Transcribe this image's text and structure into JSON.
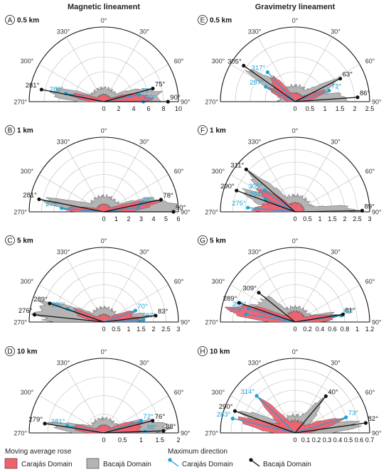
{
  "columns": {
    "left_title": "Magnetic lineament",
    "right_title": "Gravimetry lineament"
  },
  "colors": {
    "carajas_fill": "#f0606e",
    "bacaja_fill": "#b4b4b4",
    "carajas_line": "#1aa3d9",
    "bacaja_line": "#111111"
  },
  "angle_labels": [
    "0°",
    "30°",
    "60°",
    "90°",
    "270°",
    "300°",
    "330°"
  ],
  "legend": {
    "rose_title": "Moving average rose",
    "direction_title": "Maximum direction",
    "carajas": "Carajás Domain",
    "bacaja": "Bacajá Domain"
  },
  "chart_data": [
    {
      "panel": "A",
      "scale": "0.5 km",
      "column": "Magnetic lineament",
      "type": "area",
      "radial_ticks": [
        "0",
        "2",
        "4",
        "6",
        "8",
        "10"
      ],
      "rmax": 10,
      "carajas": {
        "max_directions": [
          282,
          79,
          90
        ],
        "peak": 5.0
      },
      "bacaja": {
        "max_directions": [
          281,
          75,
          90
        ],
        "peak": 7.5
      },
      "direction_markers": [
        {
          "domain": "carajas",
          "angle": 282,
          "value": 5.2,
          "label": "282°"
        },
        {
          "domain": "carajas",
          "angle": 79,
          "value": 4.8,
          "label": "79°"
        },
        {
          "domain": "carajas",
          "angle": 90,
          "value": 5.3,
          "label": "90°"
        },
        {
          "domain": "bacaja",
          "angle": 281,
          "value": 8.5,
          "label": "281°"
        },
        {
          "domain": "bacaja",
          "angle": 75,
          "value": 6.8,
          "label": "75°"
        },
        {
          "domain": "bacaja",
          "angle": 90,
          "value": 8.6,
          "label": "90°"
        }
      ]
    },
    {
      "panel": "B",
      "scale": "1 km",
      "column": "Magnetic lineament",
      "type": "area",
      "radial_ticks": [
        "0",
        "1",
        "2",
        "3",
        "4",
        "5",
        "6"
      ],
      "rmax": 6,
      "carajas": {
        "max_directions": [
          275,
          83,
          78
        ],
        "peak": 3.2
      },
      "bacaja": {
        "max_directions": [
          281,
          78,
          90
        ],
        "peak": 5.2
      },
      "direction_markers": [
        {
          "domain": "carajas",
          "angle": 275,
          "value": 3.4,
          "label": "275°"
        },
        {
          "domain": "carajas",
          "angle": 83,
          "value": 2.8,
          "label": "83°"
        },
        {
          "domain": "carajas",
          "angle": 78,
          "value": 3.0,
          "label": "78°"
        },
        {
          "domain": "bacaja",
          "angle": 281,
          "value": 5.3,
          "label": "281°"
        },
        {
          "domain": "bacaja",
          "angle": 78,
          "value": 4.7,
          "label": "78°"
        },
        {
          "domain": "bacaja",
          "angle": 90,
          "value": 5.6,
          "label": "90°"
        }
      ]
    },
    {
      "panel": "C",
      "scale": "5 km",
      "column": "Magnetic lineament",
      "type": "area",
      "radial_ticks": [
        "0",
        "0.5",
        "1",
        "1.5",
        "2",
        "2.5",
        "3"
      ],
      "rmax": 3,
      "carajas": {
        "max_directions": [
          290,
          70,
          87
        ],
        "peak": 1.6
      },
      "bacaja": {
        "max_directions": [
          276,
          289,
          83
        ],
        "peak": 2.4
      },
      "direction_markers": [
        {
          "domain": "carajas",
          "angle": 290,
          "value": 1.55,
          "label": "290°"
        },
        {
          "domain": "carajas",
          "angle": 70,
          "value": 1.35,
          "label": "70°"
        },
        {
          "domain": "carajas",
          "angle": 87,
          "value": 1.6,
          "label": "87°"
        },
        {
          "domain": "bacaja",
          "angle": 276,
          "value": 2.8,
          "label": "276°"
        },
        {
          "domain": "bacaja",
          "angle": 289,
          "value": 2.3,
          "label": "289°"
        },
        {
          "domain": "bacaja",
          "angle": 83,
          "value": 2.1,
          "label": "83°"
        }
      ]
    },
    {
      "panel": "D",
      "scale": "10 km",
      "column": "Magnetic lineament",
      "type": "area",
      "radial_ticks": [
        "0",
        "0.5",
        "1",
        "1.5",
        "2"
      ],
      "rmax": 2,
      "carajas": {
        "max_directions": [
          281,
          72,
          88
        ],
        "peak": 1.1
      },
      "bacaja": {
        "max_directions": [
          279,
          76,
          88
        ],
        "peak": 1.6
      },
      "direction_markers": [
        {
          "domain": "carajas",
          "angle": 281,
          "value": 1.0,
          "label": "281°"
        },
        {
          "domain": "carajas",
          "angle": 72,
          "value": 1.05,
          "label": "72°"
        },
        {
          "domain": "carajas",
          "angle": 88,
          "value": 1.1,
          "label": "88°"
        },
        {
          "domain": "bacaja",
          "angle": 279,
          "value": 1.6,
          "label": "279°"
        },
        {
          "domain": "bacaja",
          "angle": 76,
          "value": 1.35,
          "label": "76°"
        },
        {
          "domain": "bacaja",
          "angle": 88,
          "value": 1.6,
          "label": "88°"
        }
      ]
    },
    {
      "panel": "E",
      "scale": "0.5 km",
      "column": "Gravimetry lineament",
      "type": "area",
      "radial_ticks": [
        "0",
        "0.5",
        "1",
        "1.5",
        "2",
        "2.5"
      ],
      "rmax": 2.5,
      "carajas": {
        "max_directions": [
          317,
          297,
          72
        ],
        "peak": 1.5
      },
      "bacaja": {
        "max_directions": [
          305,
          63,
          86
        ],
        "peak": 2.2
      },
      "direction_markers": [
        {
          "domain": "carajas",
          "angle": 317,
          "value": 1.35,
          "label": "317°"
        },
        {
          "domain": "carajas",
          "angle": 297,
          "value": 1.1,
          "label": "297°"
        },
        {
          "domain": "carajas",
          "angle": 72,
          "value": 1.2,
          "label": "72°"
        },
        {
          "domain": "bacaja",
          "angle": 305,
          "value": 2.1,
          "label": "305°"
        },
        {
          "domain": "bacaja",
          "angle": 63,
          "value": 1.7,
          "label": "63°"
        },
        {
          "domain": "bacaja",
          "angle": 86,
          "value": 2.1,
          "label": "86°"
        }
      ]
    },
    {
      "panel": "F",
      "scale": "1 km",
      "column": "Gravimetry lineament",
      "type": "area",
      "radial_ticks": [
        "0",
        "0.5",
        "1",
        "1.5",
        "2",
        "2.5",
        "3"
      ],
      "rmax": 3,
      "carajas": {
        "max_directions": [
          305,
          275,
          294
        ],
        "peak": 1.9
      },
      "bacaja": {
        "max_directions": [
          311,
          290,
          89
        ],
        "peak": 2.7
      },
      "direction_markers": [
        {
          "domain": "carajas",
          "angle": 305,
          "value": 1.5,
          "label": "305°"
        },
        {
          "domain": "carajas",
          "angle": 275,
          "value": 1.9,
          "label": "275°"
        },
        {
          "domain": "carajas",
          "angle": 294,
          "value": 1.3,
          "label": "294°"
        },
        {
          "domain": "bacaja",
          "angle": 311,
          "value": 2.6,
          "label": "311°"
        },
        {
          "domain": "bacaja",
          "angle": 290,
          "value": 2.5,
          "label": "290°"
        },
        {
          "domain": "bacaja",
          "angle": 89,
          "value": 2.7,
          "label": "89°"
        }
      ]
    },
    {
      "panel": "G",
      "scale": "5 km",
      "column": "Gravimetry lineament",
      "type": "area",
      "radial_ticks": [
        "0",
        "0.2",
        "0.4",
        "0.6",
        "0.8",
        "1",
        "1.2"
      ],
      "rmax": 1.2,
      "carajas": {
        "max_directions": [
          286,
          279,
          82
        ],
        "peak": 0.9
      },
      "bacaja": {
        "max_directions": [
          289,
          309,
          81
        ],
        "peak": 1.0
      },
      "direction_markers": [
        {
          "domain": "carajas",
          "angle": 286,
          "value": 0.78,
          "label": "286°"
        },
        {
          "domain": "carajas",
          "angle": 279,
          "value": 0.8,
          "label": "279°"
        },
        {
          "domain": "carajas",
          "angle": 82,
          "value": 0.75,
          "label": "82°"
        },
        {
          "domain": "bacaja",
          "angle": 289,
          "value": 0.95,
          "label": "289°"
        },
        {
          "domain": "bacaja",
          "angle": 309,
          "value": 0.75,
          "label": "309°"
        },
        {
          "domain": "bacaja",
          "angle": 81,
          "value": 0.78,
          "label": "81°"
        }
      ]
    },
    {
      "panel": "H",
      "scale": "10 km",
      "column": "Gravimetry lineament",
      "type": "area",
      "radial_ticks": [
        "0",
        "0.1",
        "0.2",
        "0.3",
        "0.4",
        "0.5",
        "0.6",
        "0.7"
      ],
      "rmax": 0.7,
      "carajas": {
        "max_directions": [
          314,
          283,
          73
        ],
        "peak": 0.6
      },
      "bacaja": {
        "max_directions": [
          290,
          40,
          82
        ],
        "peak": 0.68
      },
      "direction_markers": [
        {
          "domain": "carajas",
          "angle": 314,
          "value": 0.5,
          "label": "314°"
        },
        {
          "domain": "carajas",
          "angle": 283,
          "value": 0.6,
          "label": "283°"
        },
        {
          "domain": "carajas",
          "angle": 73,
          "value": 0.5,
          "label": "73°"
        },
        {
          "domain": "bacaja",
          "angle": 290,
          "value": 0.6,
          "label": "290°"
        },
        {
          "domain": "bacaja",
          "angle": 40,
          "value": 0.45,
          "label": "40°"
        },
        {
          "domain": "bacaja",
          "angle": 82,
          "value": 0.67,
          "label": "82°"
        }
      ]
    }
  ]
}
